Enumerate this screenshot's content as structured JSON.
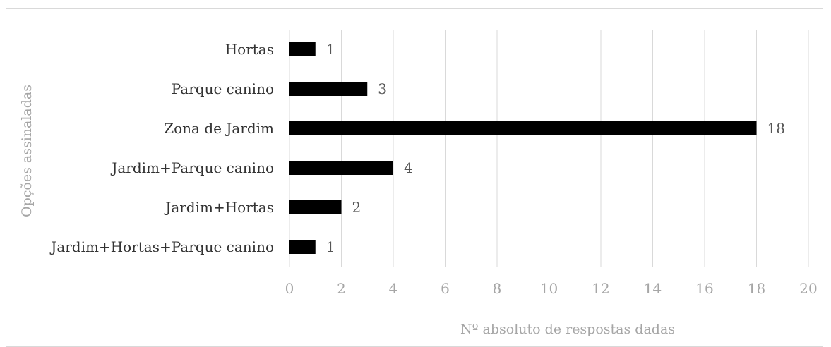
{
  "chart_data": {
    "type": "bar",
    "orientation": "horizontal",
    "title": "",
    "xlabel": "Nº absoluto de respostas dadas",
    "ylabel": "Opções assinaladas",
    "categories": [
      "Hortas",
      "Parque canino",
      "Zona de Jardim",
      "Jardim+Parque canino",
      "Jardim+Hortas",
      "Jardim+Hortas+Parque canino"
    ],
    "values": [
      1,
      3,
      18,
      4,
      2,
      1
    ],
    "xlim": [
      0,
      20
    ],
    "x_ticks": [
      "0",
      "2",
      "4",
      "6",
      "8",
      "10",
      "12",
      "14",
      "16",
      "18",
      "20"
    ],
    "grid": "vertical",
    "bar_color": "#000000",
    "grid_color": "#d9d9d9",
    "legend": "none"
  }
}
